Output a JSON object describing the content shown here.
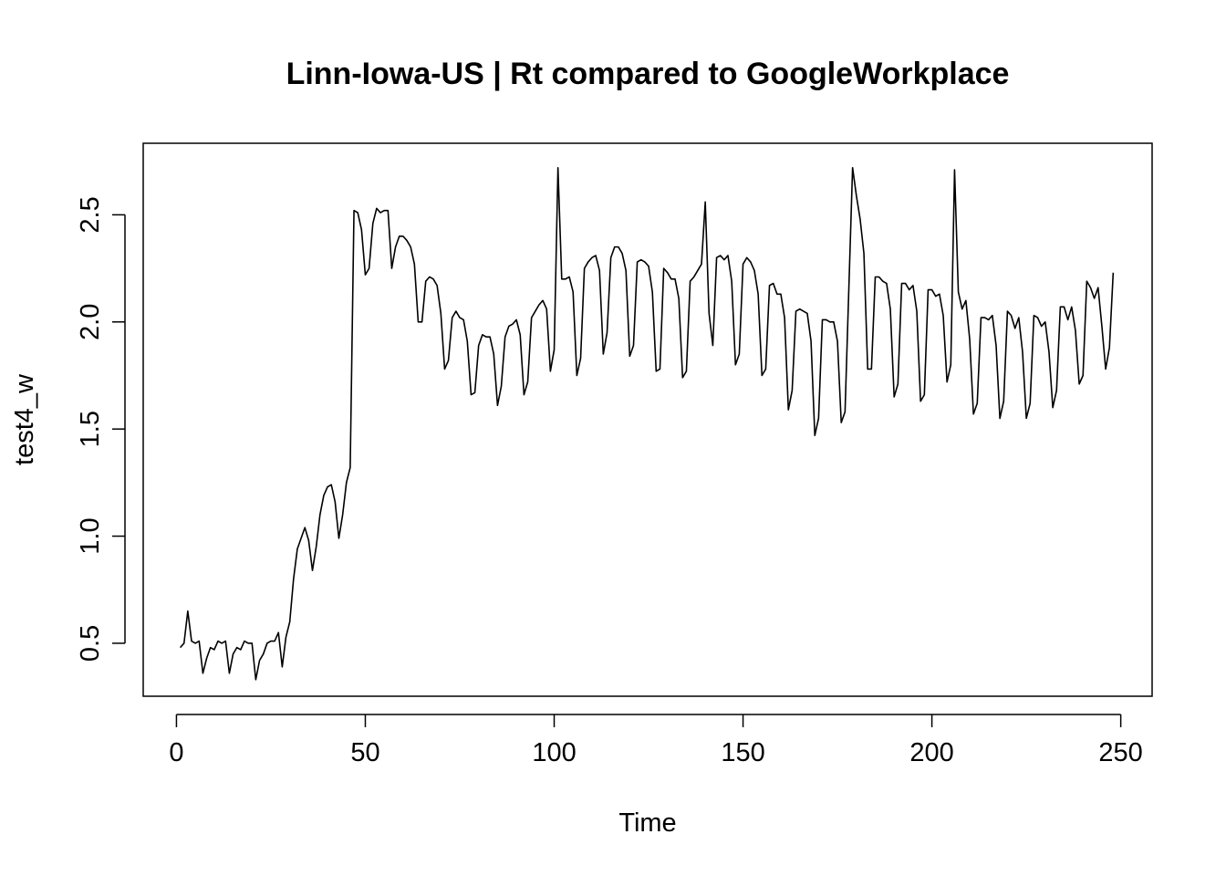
{
  "chart_data": {
    "type": "line",
    "title": "Linn-Iowa-US | Rt compared to GoogleWorkplace",
    "xlabel": "Time",
    "ylabel": "test4_w",
    "xlim": [
      -8.8,
      258.3
    ],
    "ylim": [
      0.2527,
      2.834
    ],
    "xticks": [
      0,
      50,
      100,
      150,
      200,
      250
    ],
    "yticks": [
      0.5,
      1.0,
      1.5,
      2.0,
      2.5
    ],
    "xtick_labels": [
      "0",
      "50",
      "100",
      "150",
      "200",
      "250"
    ],
    "ytick_labels": [
      "0.5",
      "1.0",
      "1.5",
      "2.0",
      "2.5"
    ],
    "grid": false,
    "legend": "none",
    "series": [
      {
        "x_start": 1,
        "values": [
          0.48,
          0.5,
          0.65,
          0.51,
          0.5,
          0.51,
          0.36,
          0.43,
          0.48,
          0.47,
          0.51,
          0.5,
          0.51,
          0.36,
          0.45,
          0.48,
          0.47,
          0.51,
          0.5,
          0.5,
          0.33,
          0.42,
          0.45,
          0.5,
          0.51,
          0.51,
          0.55,
          0.39,
          0.53,
          0.6,
          0.8,
          0.94,
          0.99,
          1.04,
          0.98,
          0.84,
          0.95,
          1.1,
          1.19,
          1.23,
          1.24,
          1.16,
          0.99,
          1.1,
          1.25,
          1.32,
          2.52,
          2.51,
          2.43,
          2.22,
          2.25,
          2.46,
          2.53,
          2.51,
          2.52,
          2.52,
          2.25,
          2.35,
          2.4,
          2.4,
          2.38,
          2.35,
          2.27,
          2.0,
          2.0,
          2.19,
          2.21,
          2.2,
          2.17,
          2.04,
          1.78,
          1.82,
          2.02,
          2.05,
          2.02,
          2.01,
          1.91,
          1.66,
          1.67,
          1.89,
          1.94,
          1.93,
          1.93,
          1.85,
          1.61,
          1.7,
          1.93,
          1.98,
          1.99,
          2.01,
          1.94,
          1.66,
          1.72,
          2.02,
          2.05,
          2.08,
          2.1,
          2.06,
          1.77,
          1.87,
          2.72,
          2.2,
          2.2,
          2.21,
          2.14,
          1.75,
          1.83,
          2.25,
          2.28,
          2.3,
          2.31,
          2.24,
          1.85,
          1.95,
          2.3,
          2.35,
          2.35,
          2.32,
          2.24,
          1.84,
          1.89,
          2.28,
          2.29,
          2.28,
          2.26,
          2.14,
          1.77,
          1.78,
          2.25,
          2.23,
          2.2,
          2.2,
          2.11,
          1.74,
          1.77,
          2.19,
          2.21,
          2.24,
          2.27,
          2.56,
          2.04,
          1.89,
          2.3,
          2.31,
          2.29,
          2.31,
          2.19,
          1.8,
          1.85,
          2.27,
          2.3,
          2.28,
          2.24,
          2.13,
          1.75,
          1.78,
          2.17,
          2.18,
          2.13,
          2.13,
          2.02,
          1.59,
          1.68,
          2.05,
          2.06,
          2.05,
          2.04,
          1.91,
          1.47,
          1.55,
          2.01,
          2.01,
          2.0,
          2.0,
          1.91,
          1.53,
          1.58,
          2.15,
          2.72,
          2.59,
          2.48,
          2.32,
          1.78,
          1.78,
          2.21,
          2.21,
          2.19,
          2.18,
          2.06,
          1.65,
          1.71,
          2.18,
          2.18,
          2.15,
          2.17,
          2.05,
          1.63,
          1.66,
          2.15,
          2.15,
          2.12,
          2.13,
          2.03,
          1.72,
          1.8,
          2.71,
          2.14,
          2.06,
          2.1,
          1.92,
          1.57,
          1.62,
          2.02,
          2.02,
          2.01,
          2.03,
          1.89,
          1.55,
          1.63,
          2.05,
          2.03,
          1.97,
          2.02,
          1.86,
          1.55,
          1.62,
          2.03,
          2.02,
          1.98,
          2.0,
          1.86,
          1.6,
          1.68,
          2.07,
          2.07,
          2.01,
          2.07,
          1.96,
          1.71,
          1.75,
          2.19,
          2.16,
          2.11,
          2.16,
          1.98,
          1.78,
          1.88,
          2.23
        ]
      }
    ]
  }
}
